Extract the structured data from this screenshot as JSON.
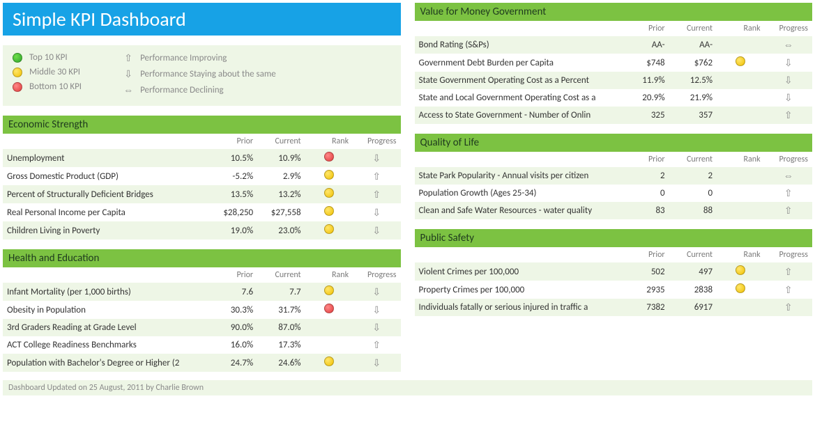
{
  "title": "Simple KPI Dashboard",
  "legend": {
    "ranks": [
      {
        "label": "Top 10 KPI",
        "color": "green"
      },
      {
        "label": "Middle 30 KPI",
        "color": "yellow"
      },
      {
        "label": "Bottom 10 KPI",
        "color": "red"
      }
    ],
    "progress": [
      {
        "label": "Performance Improving",
        "glyph": "⇧"
      },
      {
        "label": "Performance Staying about the same",
        "glyph": "⇩"
      },
      {
        "label": "Performance Declining",
        "glyph": "⇔"
      }
    ]
  },
  "columns": {
    "name": "",
    "prior": "Prior",
    "current": "Current",
    "rank": "Rank",
    "progress": "Progress"
  },
  "panels": {
    "value_for_money": {
      "title": "Value for Money Government",
      "rows": [
        {
          "name": "Bond Rating (S&Ps)",
          "prior": "AA-",
          "current": "AA-",
          "rank": "",
          "progress": "⇔"
        },
        {
          "name": "Government Debt Burden per Capita",
          "prior": "$748",
          "current": "$762",
          "rank": "yellow",
          "progress": "⇩"
        },
        {
          "name": "State Government Operating Cost as a Percent",
          "prior": "11.9%",
          "current": "12.5%",
          "rank": "",
          "progress": "⇩"
        },
        {
          "name": "State and Local Government Operating Cost as a",
          "prior": "20.9%",
          "current": "21.9%",
          "rank": "",
          "progress": "⇩"
        },
        {
          "name": "Access to State Government - Number of Onlin",
          "prior": "325",
          "current": "357",
          "rank": "",
          "progress": "⇧"
        }
      ]
    },
    "economic_strength": {
      "title": "Economic Strength",
      "rows": [
        {
          "name": "Unemployment",
          "prior": "10.5%",
          "current": "10.9%",
          "rank": "red",
          "progress": "⇩"
        },
        {
          "name": "Gross Domestic Product (GDP)",
          "prior": "-5.2%",
          "current": "2.9%",
          "rank": "yellow",
          "progress": "⇧"
        },
        {
          "name": "Percent of Structurally Deficient Bridges",
          "prior": "13.5%",
          "current": "13.2%",
          "rank": "yellow",
          "progress": "⇧"
        },
        {
          "name": "Real Personal Income per Capita",
          "prior": "$28,250",
          "current": "$27,558",
          "rank": "yellow",
          "progress": "⇩"
        },
        {
          "name": "Children Living in Poverty",
          "prior": "19.0%",
          "current": "23.0%",
          "rank": "yellow",
          "progress": "⇩"
        }
      ]
    },
    "quality_of_life": {
      "title": "Quality of Life",
      "rows": [
        {
          "name": "State Park Popularity - Annual visits per citizen",
          "prior": "2",
          "current": "2",
          "rank": "",
          "progress": "⇔"
        },
        {
          "name": "Population Growth (Ages 25-34)",
          "prior": "0",
          "current": "0",
          "rank": "",
          "progress": "⇧"
        },
        {
          "name": "Clean and Safe Water Resources - water quality",
          "prior": "83",
          "current": "88",
          "rank": "",
          "progress": "⇧"
        }
      ]
    },
    "health_education": {
      "title": "Health and Education",
      "rows": [
        {
          "name": "Infant Mortality (per 1,000 births)",
          "prior": "7.6",
          "current": "7.7",
          "rank": "yellow",
          "progress": "⇩"
        },
        {
          "name": "Obesity in Population",
          "prior": "30.3%",
          "current": "31.7%",
          "rank": "red",
          "progress": "⇩"
        },
        {
          "name": "3rd Graders Reading at Grade Level",
          "prior": "90.0%",
          "current": "87.0%",
          "rank": "",
          "progress": "⇩"
        },
        {
          "name": "ACT College Readiness Benchmarks",
          "prior": "16.0%",
          "current": "17.3%",
          "rank": "",
          "progress": "⇧"
        },
        {
          "name": "Population with Bachelor's Degree or Higher (2",
          "prior": "24.7%",
          "current": "24.6%",
          "rank": "yellow",
          "progress": "⇩"
        }
      ]
    },
    "public_safety": {
      "title": "Public Safety",
      "rows": [
        {
          "name": "Violent Crimes per 100,000",
          "prior": "502",
          "current": "497",
          "rank": "yellow",
          "progress": "⇧"
        },
        {
          "name": "Property Crimes per 100,000",
          "prior": "2935",
          "current": "2838",
          "rank": "yellow",
          "progress": "⇧"
        },
        {
          "name": "Individuals fatally or serious injured in traffic a",
          "prior": "7382",
          "current": "6917",
          "rank": "",
          "progress": "⇧"
        }
      ]
    }
  },
  "footer": "Dashboard Updated on 25 August, 2011 by Charlie Brown",
  "colors": {
    "title_bg": "#17a2e6",
    "panel_header_bg": "#7cc242",
    "stripe_bg": "#eef6e6",
    "text_muted": "#8a8a8a"
  }
}
